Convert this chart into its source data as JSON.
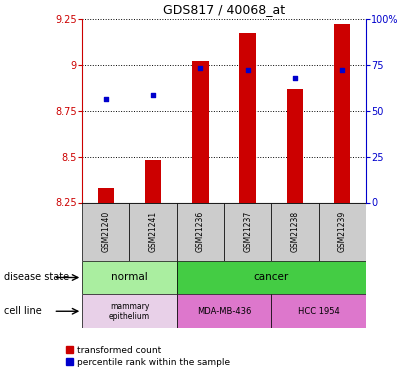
{
  "title": "GDS817 / 40068_at",
  "samples": [
    "GSM21240",
    "GSM21241",
    "GSM21236",
    "GSM21237",
    "GSM21238",
    "GSM21239"
  ],
  "transformed_count": [
    8.33,
    8.48,
    9.02,
    9.17,
    8.87,
    9.22
  ],
  "percentile_rank_pct": [
    56.5,
    58.5,
    73.0,
    72.0,
    68.0,
    72.0
  ],
  "ylim_left": [
    8.25,
    9.25
  ],
  "yticks_left": [
    8.25,
    8.5,
    8.75,
    9.0,
    9.25
  ],
  "ytick_labels_left": [
    "8.25",
    "8.5",
    "8.75",
    "9",
    "9.25"
  ],
  "yticks_right": [
    0,
    25,
    50,
    75,
    100
  ],
  "ytick_labels_right": [
    "0",
    "25",
    "50",
    "75",
    "100%"
  ],
  "bar_color": "#cc0000",
  "dot_color": "#0000cc",
  "bar_bottom": 8.25,
  "normal_color": "#aaeea0",
  "cancer_color": "#44cc44",
  "mammary_color": "#e8d0e8",
  "mda_hcc_color": "#dd77cc",
  "gray_color": "#cccccc",
  "label_disease_state": "disease state",
  "label_cell_line": "cell line",
  "legend_red_label": "transformed count",
  "legend_blue_label": "percentile rank within the sample",
  "axes_color": "#cc0000",
  "right_axes_color": "#0000cc"
}
